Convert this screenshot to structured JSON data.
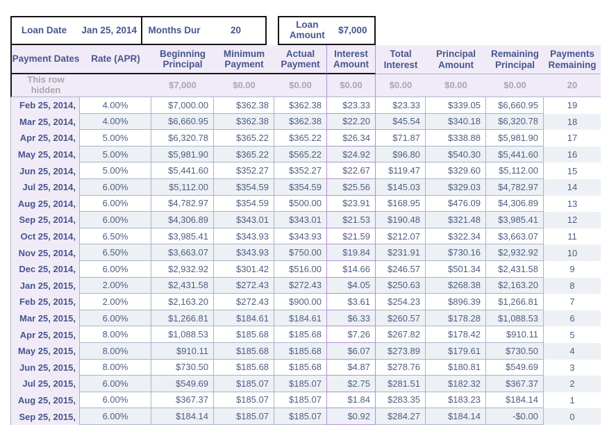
{
  "summary": {
    "boxes": [
      {
        "label": "Loan Date",
        "value": "Jan 25, 2014"
      },
      {
        "label": "Months Dur",
        "value": "20"
      },
      {
        "label": "Loan Amount",
        "value": "$7,000"
      }
    ]
  },
  "table": {
    "columns": [
      "Payment Dates",
      "Rate (APR)",
      "Beginning Principal",
      "Minimum Payment",
      "Actual Payment",
      "Interest Amount",
      "Total Interest",
      "Principal Amount",
      "Remaining Principal",
      "Payments Remaining"
    ],
    "hidden_row": [
      "This row hidden",
      "",
      "$7,000",
      "$0.00",
      "$0.00",
      "$0.00",
      "$0.00",
      "$0.00",
      "$0.00",
      "20"
    ],
    "rows": [
      [
        "Feb 25, 2014,",
        "4.00%",
        "$7,000.00",
        "$362.38",
        "$362.38",
        "$23.33",
        "$23.33",
        "$339.05",
        "$6,660.95",
        "19"
      ],
      [
        "Mar 25, 2014,",
        "4.00%",
        "$6,660.95",
        "$362.38",
        "$362.38",
        "$22.20",
        "$45.54",
        "$340.18",
        "$6,320.78",
        "18"
      ],
      [
        "Apr 25, 2014,",
        "5.00%",
        "$6,320.78",
        "$365.22",
        "$365.22",
        "$26.34",
        "$71.87",
        "$338.88",
        "$5,981.90",
        "17"
      ],
      [
        "May 25, 2014,",
        "5.00%",
        "$5,981.90",
        "$365.22",
        "$565.22",
        "$24.92",
        "$96.80",
        "$540.30",
        "$5,441.60",
        "16"
      ],
      [
        "Jun 25, 2014,",
        "5.00%",
        "$5,441.60",
        "$352.27",
        "$352.27",
        "$22.67",
        "$119.47",
        "$329.60",
        "$5,112.00",
        "15"
      ],
      [
        "Jul 25, 2014,",
        "6.00%",
        "$5,112.00",
        "$354.59",
        "$354.59",
        "$25.56",
        "$145.03",
        "$329.03",
        "$4,782.97",
        "14"
      ],
      [
        "Aug 25, 2014,",
        "6.00%",
        "$4,782.97",
        "$354.59",
        "$500.00",
        "$23.91",
        "$168.95",
        "$476.09",
        "$4,306.89",
        "13"
      ],
      [
        "Sep 25, 2014,",
        "6.00%",
        "$4,306.89",
        "$343.01",
        "$343.01",
        "$21.53",
        "$190.48",
        "$321.48",
        "$3,985.41",
        "12"
      ],
      [
        "Oct 25, 2014,",
        "6.50%",
        "$3,985.41",
        "$343.93",
        "$343.93",
        "$21.59",
        "$212.07",
        "$322.34",
        "$3,663.07",
        "11"
      ],
      [
        "Nov 25, 2014,",
        "6.50%",
        "$3,663.07",
        "$343.93",
        "$750.00",
        "$19.84",
        "$231.91",
        "$730.16",
        "$2,932.92",
        "10"
      ],
      [
        "Dec 25, 2014,",
        "6.00%",
        "$2,932.92",
        "$301.42",
        "$516.00",
        "$14.66",
        "$246.57",
        "$501.34",
        "$2,431.58",
        "9"
      ],
      [
        "Jan 25, 2015,",
        "2.00%",
        "$2,431.58",
        "$272.43",
        "$272.43",
        "$4.05",
        "$250.63",
        "$268.38",
        "$2,163.20",
        "8"
      ],
      [
        "Feb 25, 2015,",
        "2.00%",
        "$2,163.20",
        "$272.43",
        "$900.00",
        "$3.61",
        "$254.23",
        "$896.39",
        "$1,266.81",
        "7"
      ],
      [
        "Mar 25, 2015,",
        "6.00%",
        "$1,266.81",
        "$184.61",
        "$184.61",
        "$6.33",
        "$260.57",
        "$178.28",
        "$1,088.53",
        "6"
      ],
      [
        "Apr 25, 2015,",
        "8.00%",
        "$1,088.53",
        "$185.68",
        "$185.68",
        "$7.26",
        "$267.82",
        "$178.42",
        "$910.11",
        "5"
      ],
      [
        "May 25, 2015,",
        "8.00%",
        "$910.11",
        "$185.68",
        "$185.68",
        "$6.07",
        "$273.89",
        "$179.61",
        "$730.50",
        "4"
      ],
      [
        "Jun 25, 2015,",
        "8.00%",
        "$730.50",
        "$185.68",
        "$185.68",
        "$4.87",
        "$278.76",
        "$180.81",
        "$549.69",
        "3"
      ],
      [
        "Jul 25, 2015,",
        "6.00%",
        "$549.69",
        "$185.07",
        "$185.07",
        "$2.75",
        "$281.51",
        "$182.32",
        "$367.37",
        "2"
      ],
      [
        "Aug 25, 2015,",
        "6.00%",
        "$367.37",
        "$185.07",
        "$185.07",
        "$1.84",
        "$283.35",
        "$183.23",
        "$184.14",
        "1"
      ],
      [
        "Sep 25, 2015,",
        "6.00%",
        "$184.14",
        "$185.07",
        "$185.07",
        "$0.92",
        "$284.27",
        "$184.14",
        "-$0.00",
        "0"
      ]
    ]
  },
  "colors": {
    "header_text": "#45568c",
    "value_text": "#4e5d80",
    "hidden_text": "#a9a5ad",
    "lavender_bg": "#f1ebf8",
    "alt_row_bg": "#edf1f5",
    "grid_border": "#a6b4c8",
    "selected_column_border": "#b18fd9",
    "box_border": "#131313"
  }
}
